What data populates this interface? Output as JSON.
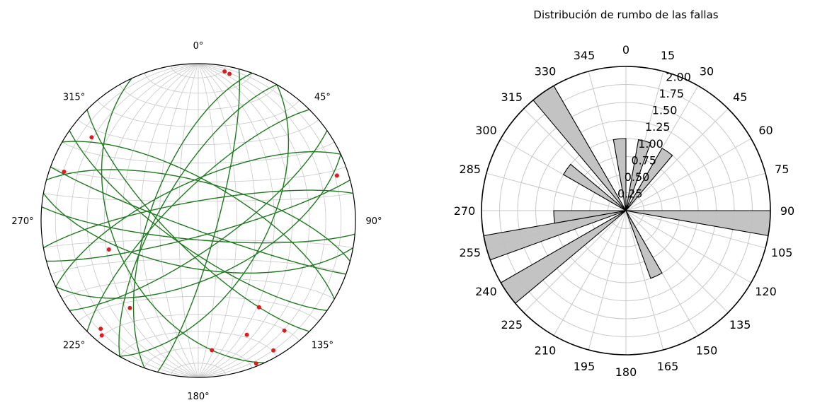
{
  "chart_data": [
    {
      "type": "scatter",
      "subtype": "stereonet",
      "projection": "equal-area lower hemisphere",
      "grid": true,
      "direction_labels": [
        "0°",
        "45°",
        "90°",
        "135°",
        "180°",
        "225°",
        "270°",
        "315°"
      ],
      "planes_color": "#1f7a1f",
      "poles_color": "#e31a1c",
      "planes": [
        {
          "strike": 15,
          "dip": 80
        },
        {
          "strike": 30,
          "dip": 55
        },
        {
          "strike": 55,
          "dip": 75
        },
        {
          "strike": 65,
          "dip": 60
        },
        {
          "strike": 75,
          "dip": 82
        },
        {
          "strike": 95,
          "dip": 80
        },
        {
          "strike": 100,
          "dip": 65
        },
        {
          "strike": 110,
          "dip": 85
        },
        {
          "strike": 125,
          "dip": 75
        },
        {
          "strike": 135,
          "dip": 75
        },
        {
          "strike": 155,
          "dip": 45
        },
        {
          "strike": 200,
          "dip": 65
        },
        {
          "strike": 210,
          "dip": 70
        },
        {
          "strike": 225,
          "dip": 75
        },
        {
          "strike": 245,
          "dip": 70
        },
        {
          "strike": 260,
          "dip": 80
        },
        {
          "strike": 285,
          "dip": 70
        },
        {
          "strike": 300,
          "dip": 70
        }
      ],
      "poles": [
        {
          "trend": 12,
          "plunge": 5
        },
        {
          "trend": 10,
          "plunge": 4
        },
        {
          "trend": 72,
          "plunge": 8
        },
        {
          "trend": 308,
          "plunge": 15
        },
        {
          "trend": 290,
          "plunge": 10
        },
        {
          "trend": 252,
          "plunge": 40
        },
        {
          "trend": 218,
          "plunge": 30
        },
        {
          "trend": 222,
          "plunge": 8
        },
        {
          "trend": 220,
          "plunge": 5
        },
        {
          "trend": 174,
          "plunge": 18
        },
        {
          "trend": 157,
          "plunge": 22
        },
        {
          "trend": 145,
          "plunge": 33
        },
        {
          "trend": 142,
          "plunge": 12
        },
        {
          "trend": 150,
          "plunge": 5
        },
        {
          "trend": 158,
          "plunge": 2
        }
      ]
    },
    {
      "type": "bar",
      "subtype": "polar-rose",
      "title": "Distribución de rumbo de las fallas",
      "angle_labels": [
        "0",
        "15",
        "30",
        "45",
        "60",
        "75",
        "90",
        "105",
        "120",
        "135",
        "150",
        "165",
        "180",
        "195",
        "210",
        "225",
        "240",
        "255",
        "270",
        "285",
        "300",
        "315",
        "330",
        "345"
      ],
      "radial_labels": [
        "0.25",
        "0.50",
        "0.75",
        "1.00",
        "1.25",
        "1.50",
        "1.75",
        "2.00"
      ],
      "rlim": [
        0,
        2
      ],
      "bin_width_deg": 10,
      "bar_color": "#c0c0c0",
      "edge_color": "#000000",
      "bars": [
        {
          "angle": 355,
          "value": 1
        },
        {
          "angle": 15,
          "value": 1
        },
        {
          "angle": 35,
          "value": 1
        },
        {
          "angle": 95,
          "value": 2
        },
        {
          "angle": 155,
          "value": 1
        },
        {
          "angle": 235,
          "value": 2
        },
        {
          "angle": 255,
          "value": 2
        },
        {
          "angle": 265,
          "value": 1
        },
        {
          "angle": 305,
          "value": 1
        },
        {
          "angle": 325,
          "value": 2
        }
      ]
    }
  ]
}
